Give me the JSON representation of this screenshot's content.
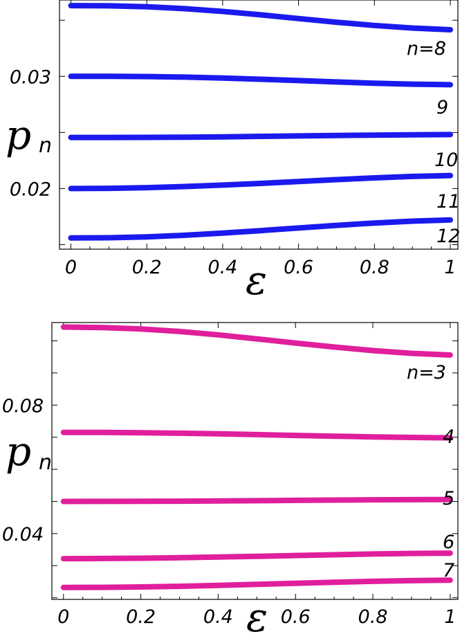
{
  "chart_data": [
    {
      "type": "line",
      "xlabel": "ε",
      "ylabel_main": "p",
      "ylabel_sub": "n",
      "xlim": [
        -0.03,
        1.02
      ],
      "ylim": [
        0.0146,
        0.0368
      ],
      "x_ticks": [
        0,
        0.2,
        0.4,
        0.6,
        0.8,
        1
      ],
      "x_tick_labels": [
        "0",
        "0.2",
        "0.4",
        "0.6",
        "0.8",
        "1"
      ],
      "y_ticks": [
        0.015,
        0.02,
        0.025,
        0.03,
        0.035
      ],
      "y_tick_labels": [
        "",
        "0.02",
        "",
        "0.03",
        ""
      ],
      "color": "#1a1aee",
      "series": [
        {
          "name": "n=8",
          "x": [
            0,
            0.1,
            0.2,
            0.3,
            0.4,
            0.5,
            0.6,
            0.7,
            0.8,
            0.9,
            1.0
          ],
          "values": [
            0.0363,
            0.03628,
            0.0362,
            0.03603,
            0.03578,
            0.03548,
            0.03515,
            0.03482,
            0.03453,
            0.0343,
            0.03415
          ]
        },
        {
          "name": "9",
          "x": [
            0,
            0.1,
            0.2,
            0.3,
            0.4,
            0.5,
            0.6,
            0.7,
            0.8,
            0.9,
            1.0
          ],
          "values": [
            0.03,
            0.03,
            0.02998,
            0.02993,
            0.02985,
            0.02974,
            0.02962,
            0.0295,
            0.02939,
            0.0293,
            0.02925
          ]
        },
        {
          "name": "10",
          "x": [
            0,
            0.1,
            0.2,
            0.3,
            0.4,
            0.5,
            0.6,
            0.7,
            0.8,
            0.9,
            1.0
          ],
          "values": [
            0.02455,
            0.02455,
            0.02456,
            0.02458,
            0.02461,
            0.02465,
            0.02469,
            0.02473,
            0.02476,
            0.02479,
            0.02481
          ]
        },
        {
          "name": "11",
          "x": [
            0,
            0.1,
            0.2,
            0.3,
            0.4,
            0.5,
            0.6,
            0.7,
            0.8,
            0.9,
            1.0
          ],
          "values": [
            0.02,
            0.02002,
            0.02008,
            0.02018,
            0.02031,
            0.02046,
            0.02063,
            0.0208,
            0.02095,
            0.02108,
            0.02116
          ]
        },
        {
          "name": "12",
          "x": [
            0,
            0.1,
            0.2,
            0.3,
            0.4,
            0.5,
            0.6,
            0.7,
            0.8,
            0.9,
            1.0
          ],
          "values": [
            0.0156,
            0.01562,
            0.0157,
            0.01584,
            0.01603,
            0.01625,
            0.01649,
            0.01672,
            0.01693,
            0.0171,
            0.0172
          ]
        }
      ]
    },
    {
      "type": "line",
      "xlabel": "ε",
      "ylabel_main": "p",
      "ylabel_sub": "n",
      "xlim": [
        -0.03,
        1.02
      ],
      "ylim": [
        0.0195,
        0.1057
      ],
      "x_ticks": [
        0,
        0.2,
        0.4,
        0.6,
        0.8,
        1
      ],
      "x_tick_labels": [
        "0",
        "0.2",
        "0.4",
        "0.6",
        "0.8",
        "1"
      ],
      "y_ticks": [
        0.02,
        0.03,
        0.04,
        0.05,
        0.06,
        0.07,
        0.08,
        0.09,
        0.1
      ],
      "y_tick_labels": [
        "",
        "",
        "0.04",
        "",
        "",
        "",
        "0.08",
        "",
        ""
      ],
      "color": "#e01f9c",
      "series": [
        {
          "name": "n=3",
          "x": [
            0,
            0.1,
            0.2,
            0.3,
            0.4,
            0.5,
            0.6,
            0.7,
            0.8,
            0.9,
            1.0
          ],
          "values": [
            0.1043,
            0.10415,
            0.1037,
            0.10292,
            0.10186,
            0.10062,
            0.09932,
            0.09808,
            0.09697,
            0.09612,
            0.0956
          ]
        },
        {
          "name": "4",
          "x": [
            0,
            0.1,
            0.2,
            0.3,
            0.4,
            0.5,
            0.6,
            0.7,
            0.8,
            0.9,
            1.0
          ],
          "values": [
            0.0715,
            0.07148,
            0.0714,
            0.07125,
            0.07105,
            0.07081,
            0.07055,
            0.07031,
            0.07009,
            0.06992,
            0.0698
          ]
        },
        {
          "name": "5",
          "x": [
            0,
            0.1,
            0.2,
            0.3,
            0.4,
            0.5,
            0.6,
            0.7,
            0.8,
            0.9,
            1.0
          ],
          "values": [
            0.05,
            0.05001,
            0.05004,
            0.05009,
            0.05016,
            0.05024,
            0.05033,
            0.05042,
            0.0505,
            0.05056,
            0.0506
          ]
        },
        {
          "name": "6",
          "x": [
            0,
            0.1,
            0.2,
            0.3,
            0.4,
            0.5,
            0.6,
            0.7,
            0.8,
            0.9,
            1.0
          ],
          "values": [
            0.0322,
            0.03223,
            0.03232,
            0.03248,
            0.03268,
            0.03291,
            0.03317,
            0.03341,
            0.03364,
            0.03381,
            0.0339
          ]
        },
        {
          "name": "7",
          "x": [
            0,
            0.1,
            0.2,
            0.3,
            0.4,
            0.5,
            0.6,
            0.7,
            0.8,
            0.9,
            1.0
          ],
          "values": [
            0.0232,
            0.02324,
            0.02337,
            0.02358,
            0.02386,
            0.02418,
            0.02452,
            0.02484,
            0.02512,
            0.02533,
            0.0255
          ]
        }
      ]
    }
  ]
}
